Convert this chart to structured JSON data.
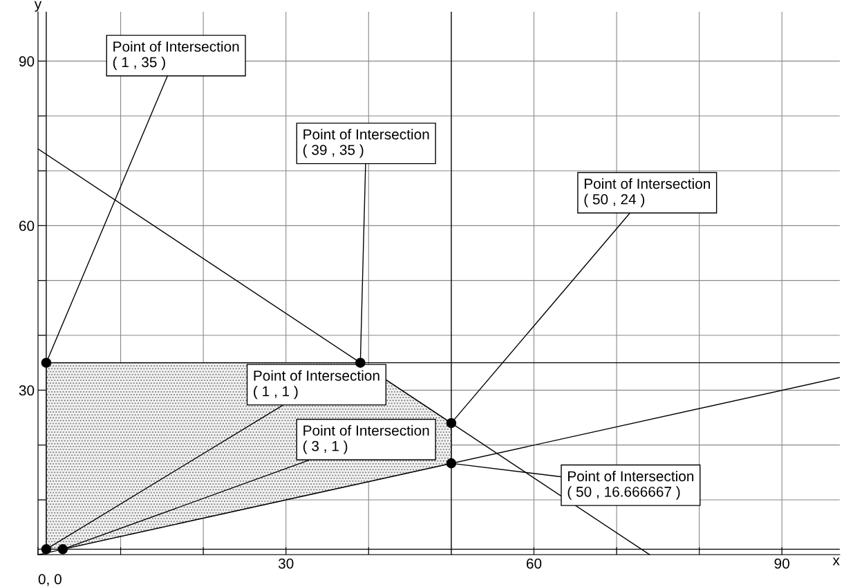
{
  "chart_data": {
    "type": "line",
    "xlabel": "x",
    "ylabel": "y",
    "xlim": [
      0,
      97
    ],
    "ylim": [
      0,
      99
    ],
    "xticks": [
      {
        "value": 0,
        "label": null
      },
      {
        "value": 10,
        "label": null
      },
      {
        "value": 20,
        "label": null
      },
      30,
      {
        "value": 40,
        "label": null
      },
      60,
      {
        "value": 70,
        "label": null
      },
      {
        "value": 80,
        "label": null
      },
      90
    ],
    "yticks": [
      {
        "value": 0,
        "label": null
      },
      {
        "value": 10,
        "label": null
      },
      {
        "value": 20,
        "label": null
      },
      30,
      {
        "value": 40,
        "label": null
      },
      {
        "value": 50,
        "label": null
      },
      60,
      {
        "value": 70,
        "label": null
      },
      {
        "value": 80,
        "label": null
      },
      90
    ],
    "grid": true,
    "series": [
      {
        "type": "area",
        "color": "#808080",
        "x": [
          1,
          3,
          50,
          50,
          39,
          1
        ],
        "values": [
          1,
          1,
          16.666667,
          24,
          35,
          35
        ]
      },
      {
        "color": "#000000",
        "x": [
          1,
          97
        ],
        "values": [
          35,
          35
        ]
      },
      {
        "color": "#000000",
        "x": [
          0,
          74
        ],
        "values": [
          74,
          0
        ]
      },
      {
        "color": "#000000",
        "x": [
          0,
          97
        ],
        "values": [
          0,
          32.3
        ]
      },
      {
        "color": "#000000",
        "x": [
          0,
          97
        ],
        "values": [
          1,
          1
        ]
      },
      {
        "color": "#000000",
        "x": [
          1,
          1
        ],
        "values": [
          0,
          99
        ]
      },
      {
        "color": "#000000",
        "x": [
          50,
          50
        ],
        "values": [
          0,
          99
        ]
      },
      {
        "type": "scatter",
        "color": "#000000",
        "marker": "circle",
        "x": [
          1,
          39,
          50,
          1,
          3,
          50
        ],
        "values": [
          35,
          35,
          24,
          1,
          1,
          16.666667
        ]
      }
    ],
    "annotations": [
      {
        "text": "Point of Intersection\n( 1 , 35 )",
        "x": 1,
        "y": 35
      },
      {
        "text": "Point of Intersection\n( 39 , 35 )",
        "x": 39,
        "y": 35
      },
      {
        "text": "Point of Intersection\n( 50 , 24 )",
        "x": 50,
        "y": 24
      },
      {
        "text": "Point of Intersection\n( 1 , 1 )",
        "x": 1,
        "y": 1
      },
      {
        "text": "Point of Intersection\n( 3 , 1 )",
        "x": 3,
        "y": 1
      },
      {
        "text": "Point of Intersection\n( 50 , 16.666667 )",
        "x": 50,
        "y": 16.666667
      },
      "0, 0"
    ]
  }
}
